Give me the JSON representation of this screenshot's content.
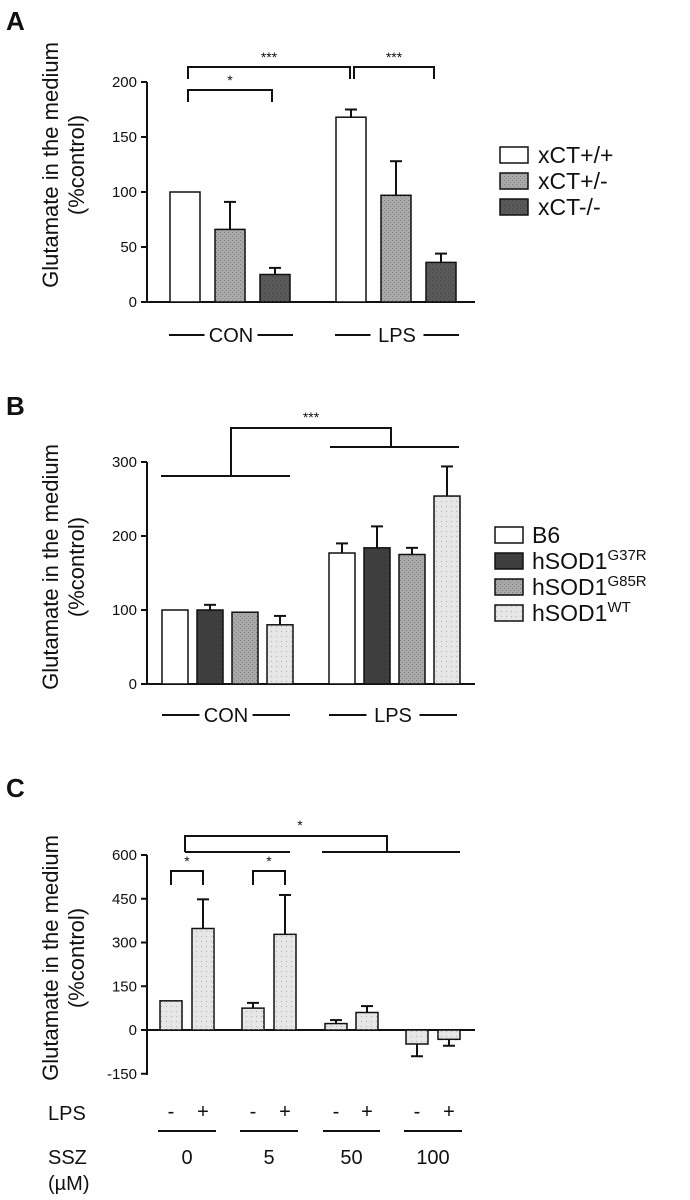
{
  "chart_data": [
    {
      "panel": "A",
      "type": "bar",
      "ylabel_line1": "Glutamate in the medium",
      "ylabel_line2": "(%control)",
      "ylim": [
        0,
        200
      ],
      "yticks": [
        0,
        50,
        100,
        150,
        200
      ],
      "groups": [
        "CON",
        "LPS"
      ],
      "series": [
        {
          "name": "xCT+/+",
          "fill": "#ffffff",
          "values": [
            100,
            168
          ],
          "errors": [
            0,
            7
          ]
        },
        {
          "name": "xCT+/-",
          "fill": "#a9a9a9",
          "values": [
            66,
            97
          ],
          "errors": [
            25,
            31
          ]
        },
        {
          "name": "xCT-/-",
          "fill": "#5a5a5a",
          "values": [
            25,
            36
          ],
          "errors": [
            6,
            8
          ]
        }
      ],
      "significance": [
        {
          "label": "*",
          "from": "CON xCT+/+",
          "to": "CON xCT-/-"
        },
        {
          "label": "***",
          "from": "CON xCT+/+",
          "to": "LPS xCT+/+"
        },
        {
          "label": "***",
          "from": "LPS xCT+/+",
          "to": "LPS xCT-/-"
        }
      ]
    },
    {
      "panel": "B",
      "type": "bar",
      "ylabel_line1": "Glutamate in the medium",
      "ylabel_line2": "(%control)",
      "ylim": [
        0,
        300
      ],
      "yticks": [
        0,
        100,
        200,
        300
      ],
      "groups": [
        "CON",
        "LPS"
      ],
      "series": [
        {
          "name": "B6",
          "sup": "",
          "fill": "#ffffff",
          "values": [
            100,
            177
          ],
          "errors": [
            0,
            13
          ]
        },
        {
          "name": "hSOD1",
          "sup": "G37R",
          "fill": "#404040",
          "values": [
            100,
            184
          ],
          "errors": [
            7,
            29
          ]
        },
        {
          "name": "hSOD1",
          "sup": "G85R",
          "fill": "#a9a9a9",
          "values": [
            97,
            175
          ],
          "errors": [
            0,
            9
          ]
        },
        {
          "name": "hSOD1",
          "sup": "WT",
          "fill": "#e6e6e6",
          "values": [
            80,
            254
          ],
          "errors": [
            12,
            40
          ]
        }
      ],
      "significance": [
        {
          "label": "***",
          "from": "CON",
          "to": "LPS"
        }
      ]
    },
    {
      "panel": "C",
      "type": "bar",
      "ylabel_line1": "Glutamate in the medium",
      "ylabel_line2": "(%control)",
      "ylim": [
        -150,
        600
      ],
      "yticks": [
        -150,
        0,
        150,
        300,
        450,
        600
      ],
      "x_label_lps": "LPS",
      "x_label_ssz_line1": "SSZ",
      "x_label_ssz_line2": "(µM)",
      "lps_minus": "-",
      "lps_plus": "+",
      "ssz_doses": [
        "0",
        "5",
        "50",
        "100"
      ],
      "bar_fill": "#e6e6e6",
      "values_minus_lps": [
        100,
        75,
        22,
        -48
      ],
      "errors_minus_lps": [
        0,
        18,
        12,
        42
      ],
      "values_plus_lps": [
        348,
        328,
        60,
        -32
      ],
      "errors_plus_lps": [
        100,
        135,
        22,
        22
      ],
      "significance": [
        {
          "label": "*",
          "from": "SSZ 0 LPS-",
          "to": "SSZ 0 LPS+"
        },
        {
          "label": "*",
          "from": "SSZ 5 LPS-",
          "to": "SSZ 5 LPS+"
        },
        {
          "label": "*",
          "from": "SSZ 0-5",
          "to": "SSZ 50-100"
        }
      ]
    }
  ]
}
